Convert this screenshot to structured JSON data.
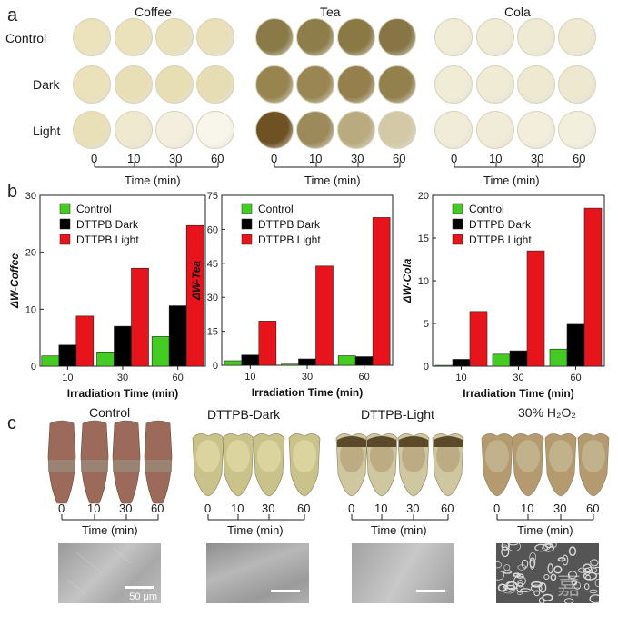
{
  "panel_a": {
    "letter": "a",
    "groups": [
      "Coffee",
      "Tea",
      "Cola"
    ],
    "rows": [
      "Control",
      "Dark",
      "Light"
    ],
    "times": [
      "0",
      "10",
      "30",
      "60"
    ],
    "time_axis_label": "Time (min)",
    "colors": {
      "coffee": [
        "#ece3bc",
        "#ebe2bb",
        "#eae1ba",
        "#e9e0b9",
        "#ebe1ba",
        "#e9dfb6",
        "#e8deb4",
        "#e7ddb2",
        "#e9e0b8",
        "#efe9cf",
        "#f3eedd",
        "#f8f5ea"
      ],
      "tea": [
        "#8a7a48",
        "#8d7d4a",
        "#8a7845",
        "#877545",
        "#97844f",
        "#9a8652",
        "#957f4d",
        "#92804d",
        "#6e5224",
        "#9c8a5a",
        "#b9aa80",
        "#d3c9a6"
      ],
      "cola": [
        "#f1ecd6",
        "#f0ebd5",
        "#efead3",
        "#efe9d2",
        "#f1ecd6",
        "#f0ebd4",
        "#efe9d2",
        "#eee8d0",
        "#f1ecd7",
        "#f1ecd7",
        "#f2eedb",
        "#f3efdd"
      ]
    }
  },
  "panel_b": {
    "letter": "b"
  },
  "chart_data": [
    {
      "type": "bar",
      "title": "",
      "ylabel": "ΔW-Coffee",
      "xlabel": "Irradiation Time (min)",
      "categories": [
        "10",
        "30",
        "60"
      ],
      "ylim": [
        0,
        30
      ],
      "yticks": [
        "0",
        "10",
        "20",
        "30"
      ],
      "series": [
        {
          "name": "Control",
          "color": "#44cc22",
          "values": [
            1.8,
            2.5,
            5.2
          ]
        },
        {
          "name": "DTTPB Dark",
          "color": "#000000",
          "values": [
            3.7,
            7.0,
            10.6
          ]
        },
        {
          "name": "DTTPB Light",
          "color": "#e8141b",
          "values": [
            8.8,
            17.2,
            24.7
          ]
        }
      ],
      "legend": "top-left"
    },
    {
      "type": "bar",
      "title": "",
      "ylabel": "ΔW-Tea",
      "xlabel": "Irradiation Time (min)",
      "categories": [
        "10",
        "30",
        "60"
      ],
      "ylim": [
        0,
        75
      ],
      "yticks": [
        "0",
        "15",
        "30",
        "45",
        "60",
        "75"
      ],
      "series": [
        {
          "name": "Control",
          "color": "#44cc22",
          "values": [
            2.0,
            0.5,
            4.2
          ]
        },
        {
          "name": "DTTPB Dark",
          "color": "#000000",
          "values": [
            4.5,
            2.8,
            3.8
          ]
        },
        {
          "name": "DTTPB Light",
          "color": "#e8141b",
          "values": [
            19.5,
            43.8,
            65.2
          ]
        }
      ],
      "legend": "top-left"
    },
    {
      "type": "bar",
      "title": "",
      "ylabel": "ΔW-Cola",
      "xlabel": "Irradiation Time (min)",
      "categories": [
        "10",
        "30",
        "60"
      ],
      "ylim": [
        0,
        20
      ],
      "yticks": [
        "0",
        "5",
        "10",
        "15",
        "20"
      ],
      "series": [
        {
          "name": "Control",
          "color": "#44cc22",
          "values": [
            0.1,
            1.4,
            2.0
          ]
        },
        {
          "name": "DTTPB Dark",
          "color": "#000000",
          "values": [
            0.8,
            1.8,
            4.9
          ]
        },
        {
          "name": "DTTPB Light",
          "color": "#e8141b",
          "values": [
            6.4,
            13.5,
            18.5
          ]
        }
      ],
      "legend": "top-left"
    }
  ],
  "panel_c": {
    "letter": "c",
    "groups": [
      "Control",
      "DTTPB-Dark",
      "DTTPB-Light",
      "30% H₂O₂"
    ],
    "times": [
      "0",
      "10",
      "30",
      "60"
    ],
    "time_axis_label": "Time (min)",
    "scale_bar_label": "50 μm",
    "tooth_crown_colors": [
      "#9a8a78",
      "#e2d9a6",
      "#b5a27a",
      "#c5b996"
    ],
    "tooth_root_colors": [
      "#9c6a5a",
      "#c9c28a",
      "#cfc7a0",
      "#b59a70"
    ]
  },
  "watermark": "嘉"
}
